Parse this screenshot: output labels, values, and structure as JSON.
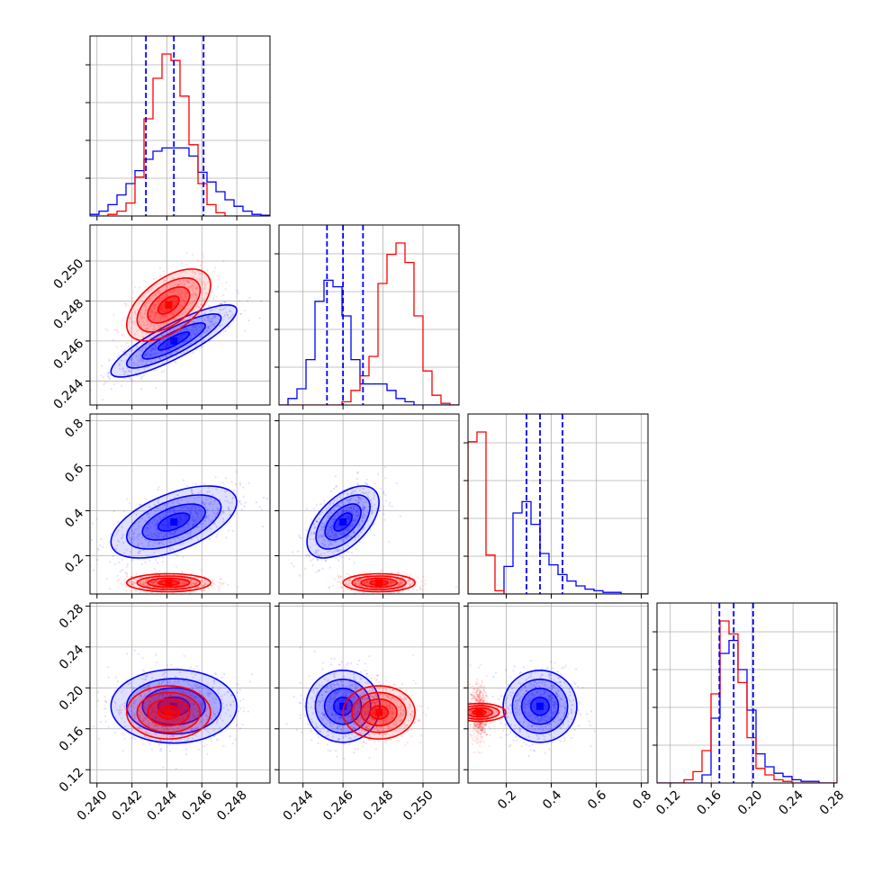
{
  "colors": {
    "series_a": "#ff0000",
    "series_b": "#0000ff",
    "grid": "#b0b0b0",
    "frame": "#000000"
  },
  "chart_data": {
    "type": "corner",
    "grid": true,
    "quantile_lines": {
      "color": "#0000ff",
      "style": "dashed"
    },
    "params": [
      {
        "range": [
          0.2396,
          0.2499
        ],
        "ticks": [
          {
            "v": 0.24,
            "label": "0.240"
          },
          {
            "v": 0.242,
            "label": "0.242"
          },
          {
            "v": 0.244,
            "label": "0.244"
          },
          {
            "v": 0.246,
            "label": "0.246"
          },
          {
            "v": 0.248,
            "label": "0.248"
          }
        ]
      },
      {
        "range": [
          0.2428,
          0.2518
        ],
        "ticks": [
          {
            "v": 0.244,
            "label": "0.244"
          },
          {
            "v": 0.246,
            "label": "0.246"
          },
          {
            "v": 0.248,
            "label": "0.248"
          },
          {
            "v": 0.25,
            "label": "0.250"
          }
        ]
      },
      {
        "range": [
          0.03,
          0.83
        ],
        "ticks": [
          {
            "v": 0.2,
            "label": "0.2"
          },
          {
            "v": 0.4,
            "label": "0.4"
          },
          {
            "v": 0.6,
            "label": "0.6"
          },
          {
            "v": 0.8,
            "label": "0.8"
          }
        ]
      },
      {
        "range": [
          0.107,
          0.283
        ],
        "ticks": [
          {
            "v": 0.12,
            "label": "0.12"
          },
          {
            "v": 0.16,
            "label": "0.16"
          },
          {
            "v": 0.2,
            "label": "0.20"
          },
          {
            "v": 0.24,
            "label": "0.24"
          },
          {
            "v": 0.28,
            "label": "0.28"
          }
        ]
      }
    ],
    "diagonal": [
      {
        "param": 0,
        "quantiles": [
          0.2428,
          0.2444,
          0.2461
        ],
        "hist_a": [
          0,
          0,
          0.01,
          0.03,
          0.08,
          0.24,
          0.6,
          0.85,
          1.0,
          0.96,
          0.74,
          0.44,
          0.2,
          0.07,
          0.02,
          0,
          0,
          0,
          0,
          0
        ],
        "hist_b": [
          0.01,
          0.03,
          0.07,
          0.13,
          0.2,
          0.28,
          0.35,
          0.4,
          0.42,
          0.42,
          0.42,
          0.37,
          0.27,
          0.21,
          0.15,
          0.1,
          0.06,
          0.03,
          0.01,
          0.005
        ]
      },
      {
        "param": 1,
        "quantiles": [
          0.2452,
          0.246,
          0.247
        ],
        "hist_a": [
          0,
          0,
          0,
          0,
          0,
          0,
          0,
          0.02,
          0.09,
          0.18,
          0.3,
          0.75,
          0.93,
          1.0,
          0.88,
          0.55,
          0.21,
          0.06,
          0.01,
          0
        ],
        "hist_b": [
          0,
          0.04,
          0.1,
          0.28,
          0.64,
          0.77,
          0.73,
          0.55,
          0.28,
          0.13,
          0.13,
          0.13,
          0.09,
          0.04,
          0.02,
          0,
          0,
          0,
          0,
          0
        ]
      },
      {
        "param": 2,
        "quantiles": [
          0.29,
          0.35,
          0.45
        ],
        "hist_a": [
          0.94,
          1.0,
          0.24,
          0.02,
          0,
          0,
          0,
          0,
          0,
          0,
          0,
          0,
          0,
          0,
          0,
          0,
          0,
          0,
          0,
          0
        ],
        "hist_b": [
          0,
          0,
          0,
          0,
          0.17,
          0.5,
          0.57,
          0.43,
          0.25,
          0.18,
          0.12,
          0.08,
          0.05,
          0.03,
          0.02,
          0.01,
          0.01,
          0,
          0,
          0
        ]
      },
      {
        "param": 3,
        "quantiles": [
          0.168,
          0.182,
          0.201
        ],
        "hist_a": [
          0,
          0,
          0,
          0.02,
          0.07,
          0.2,
          0.55,
          1.0,
          0.92,
          0.62,
          0.28,
          0.09,
          0.05,
          0.02,
          0.01,
          0,
          0,
          0,
          0,
          0
        ],
        "hist_b": [
          0,
          0,
          0,
          0,
          0,
          0.05,
          0.4,
          0.8,
          0.88,
          0.7,
          0.45,
          0.18,
          0.1,
          0.06,
          0.04,
          0.02,
          0.01,
          0.01,
          0,
          0
        ]
      }
    ],
    "pairs": [
      {
        "x": 0,
        "y": 1,
        "a": {
          "mean": [
            0.2441,
            0.2478
          ],
          "sd": [
            0.0012,
            0.0009
          ],
          "corr": 0.55
        },
        "b": {
          "mean": [
            0.2444,
            0.246
          ],
          "sd": [
            0.0018,
            0.0009
          ],
          "corr": 0.85
        }
      },
      {
        "x": 0,
        "y": 2,
        "a": {
          "mean": [
            0.2441,
            0.08
          ],
          "sd": [
            0.0012,
            0.02
          ],
          "corr": 0.0
        },
        "b": {
          "mean": [
            0.2444,
            0.35
          ],
          "sd": [
            0.0018,
            0.08
          ],
          "corr": 0.55
        }
      },
      {
        "x": 1,
        "y": 2,
        "a": {
          "mean": [
            0.2478,
            0.08
          ],
          "sd": [
            0.0009,
            0.02
          ],
          "corr": 0.0
        },
        "b": {
          "mean": [
            0.246,
            0.35
          ],
          "sd": [
            0.0009,
            0.08
          ],
          "corr": 0.55
        }
      },
      {
        "x": 0,
        "y": 3,
        "a": {
          "mean": [
            0.2441,
            0.176
          ],
          "sd": [
            0.0012,
            0.013
          ],
          "corr": 0.0
        },
        "b": {
          "mean": [
            0.2444,
            0.182
          ],
          "sd": [
            0.0018,
            0.018
          ],
          "corr": 0.0
        }
      },
      {
        "x": 1,
        "y": 3,
        "a": {
          "mean": [
            0.2478,
            0.176
          ],
          "sd": [
            0.0009,
            0.013
          ],
          "corr": 0.0
        },
        "b": {
          "mean": [
            0.246,
            0.182
          ],
          "sd": [
            0.0009,
            0.018
          ],
          "corr": 0.0
        }
      },
      {
        "x": 2,
        "y": 3,
        "a": {
          "mean": [
            0.08,
            0.176
          ],
          "sd": [
            0.02,
            0.013
          ],
          "corr": 0.0
        },
        "b": {
          "mean": [
            0.35,
            0.182
          ],
          "sd": [
            0.08,
            0.018
          ],
          "corr": 0.0
        }
      }
    ]
  }
}
